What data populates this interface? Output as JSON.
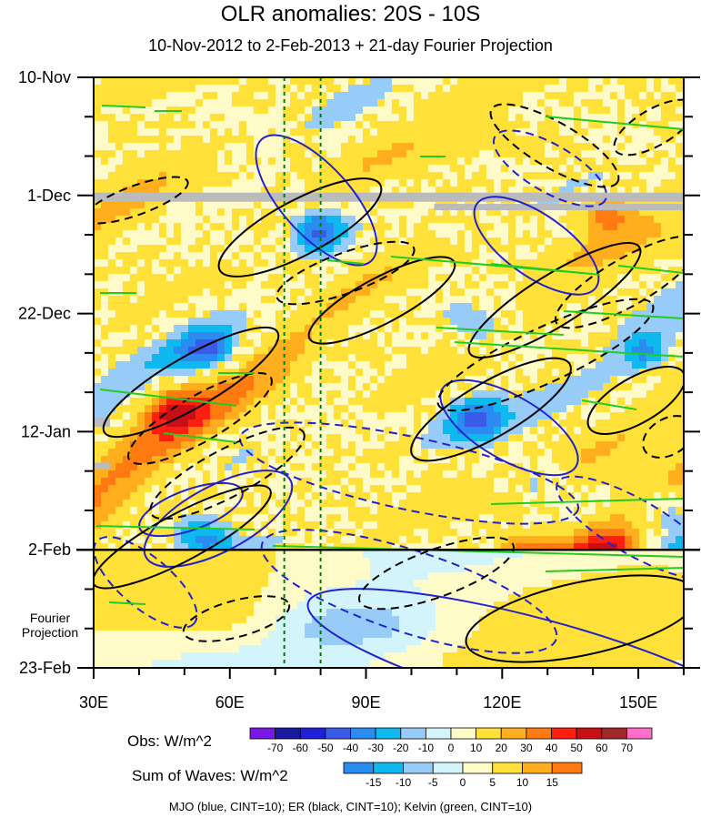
{
  "chart_data": {
    "type": "heatmap",
    "title": "OLR anomalies: 20S - 10S",
    "subtitle": "10-Nov-2012 to 2-Feb-2013 + 21-day Fourier Projection",
    "x_axis": {
      "ticks": [
        "30E",
        "60E",
        "90E",
        "120E",
        "150E"
      ],
      "tick_values": [
        30,
        60,
        90,
        120,
        150
      ],
      "range": [
        30,
        160
      ]
    },
    "y_axis": {
      "ticks": [
        "10-Nov",
        "1-Dec",
        "22-Dec",
        "12-Jan",
        "2-Feb",
        "23-Feb"
      ],
      "range": [
        "10-Nov-2012",
        "23-Feb-2013"
      ],
      "projection_label": "Fourier Projection",
      "projection_start": "2-Feb"
    },
    "obs_colorbar": {
      "label": "Obs: W/m^2",
      "levels": [
        -70,
        -60,
        -50,
        -40,
        -30,
        -20,
        -10,
        0,
        10,
        20,
        30,
        40,
        50,
        60,
        70
      ],
      "colors": [
        "#7a18e8",
        "#1a1aa0",
        "#2020d8",
        "#3a5ae8",
        "#2a8cf0",
        "#10b8f0",
        "#98ccf8",
        "#d4f4fc",
        "#fffbc8",
        "#ffe13a",
        "#ffae1e",
        "#ff7a10",
        "#ff1f10",
        "#c81014",
        "#a02828",
        "#ff6ec8"
      ]
    },
    "waves_colorbar": {
      "label": "Sum of Waves: W/m^2",
      "levels": [
        -15,
        -10,
        -5,
        0,
        5,
        10,
        15
      ],
      "colors": [
        "#2a8cf0",
        "#10b8f0",
        "#98ccf8",
        "#d4f4fc",
        "#fffbc8",
        "#ffe13a",
        "#ffae1e",
        "#ff7a10"
      ]
    },
    "contours": "MJO (blue, CINT=10); ER (black, CINT=10); Kelvin (green, CINT=10)",
    "vertical_reference_lines_lon": [
      72,
      80
    ],
    "line_colors": {
      "mjo": "#2222cc",
      "er": "#000000",
      "kelvin": "#22cc22",
      "reference": "#007a00"
    },
    "missing_color": "#bbbbbb"
  }
}
